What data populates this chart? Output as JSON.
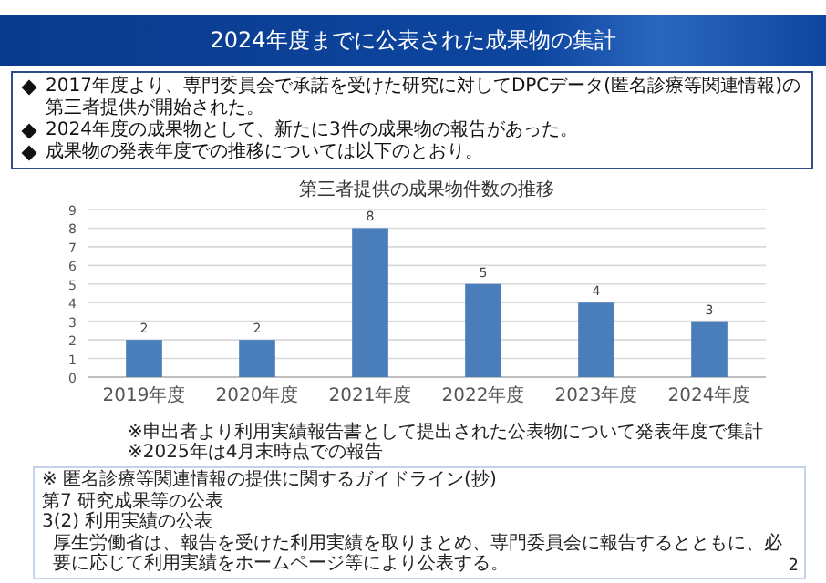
{
  "chart_data": {
    "type": "bar",
    "title": "第三者提供の成果物件数の推移",
    "categories": [
      "2019年度",
      "2020年度",
      "2021年度",
      "2022年度",
      "2023年度",
      "2024年度"
    ],
    "values": [
      2,
      2,
      8,
      5,
      4,
      3
    ],
    "color": "#4a7ebb",
    "ylim": [
      0,
      9
    ],
    "yticks": [
      0,
      1,
      2,
      3,
      4,
      5,
      6,
      7,
      8,
      9
    ],
    "grid": "y",
    "data_labels": true,
    "annotations": [
      "2024年度までに公表された成果物の集計",
      "2017年度より、専門委員会で承諾を受けた研究に対してDPCデータ(匿名診療等関連情報)の第三者提供が開始された。",
      "2024年度の成果物として、新たに3件の成果物の報告があった。",
      "成果物の発表年度での推移については以下のとおり。",
      "※申出者より利用実績報告書として提出された公表物について発表年度で集計",
      "※2025年は4月末時点での報告",
      "※ 匿名診療等関連情報の提供に関するガイドライン(抄)",
      "第7 研究成果等の公表",
      "3(2) 利用実績の公表",
      "厚生労働省は、報告を受けた利用実績を取りまとめ、専門委員会に報告するとともに、必要に応じて利用実績をホームページ等により公表する。",
      "2"
    ]
  }
}
